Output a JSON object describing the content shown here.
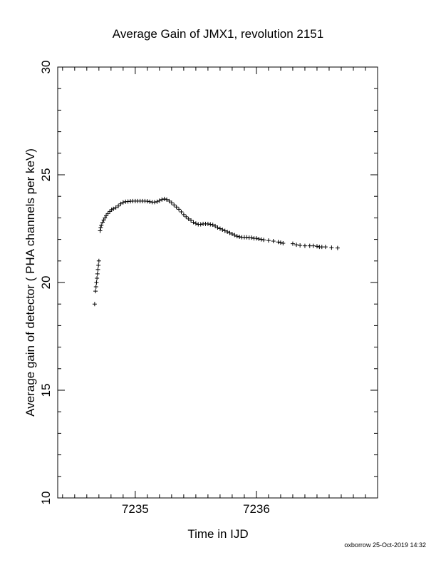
{
  "chart_data": {
    "type": "scatter",
    "title": "Average Gain of JMX1, revolution 2151",
    "xlabel": "Time in IJD",
    "ylabel": "Average gain of detector ( PHA channels per keV)",
    "xlim": [
      7234.36,
      7237.0
    ],
    "ylim": [
      10,
      30
    ],
    "x_ticks": [
      7235,
      7236
    ],
    "x_tick_labels": [
      "7235",
      "7236"
    ],
    "y_ticks": [
      10,
      15,
      20,
      25,
      30
    ],
    "y_tick_labels": [
      "10",
      "15",
      "20",
      "25",
      "30"
    ],
    "marker": "plus",
    "grid": false,
    "legend": "none",
    "series": [
      {
        "x": [
          7234.665,
          7234.672,
          7234.676,
          7234.68,
          7234.684,
          7234.688,
          7234.692,
          7234.696,
          7234.7,
          7234.71,
          7234.715,
          7234.72,
          7234.73,
          7234.74,
          7234.75,
          7234.76,
          7234.775,
          7234.79,
          7234.805,
          7234.82,
          7234.84,
          7234.86,
          7234.88,
          7234.9,
          7234.92,
          7234.94,
          7234.96,
          7234.98,
          7235.0,
          7235.02,
          7235.04,
          7235.06,
          7235.08,
          7235.1,
          7235.12,
          7235.14,
          7235.16,
          7235.18,
          7235.2,
          7235.22,
          7235.24,
          7235.26,
          7235.28,
          7235.3,
          7235.32,
          7235.34,
          7235.36,
          7235.38,
          7235.4,
          7235.42,
          7235.44,
          7235.46,
          7235.48,
          7235.5,
          7235.52,
          7235.54,
          7235.56,
          7235.58,
          7235.6,
          7235.62,
          7235.64,
          7235.66,
          7235.68,
          7235.7,
          7235.72,
          7235.74,
          7235.76,
          7235.78,
          7235.8,
          7235.82,
          7235.84,
          7235.86,
          7235.88,
          7235.9,
          7235.92,
          7235.94,
          7235.96,
          7235.98,
          7236.0,
          7236.02,
          7236.04,
          7236.06,
          7236.1,
          7236.14,
          7236.18,
          7236.2,
          7236.22,
          7236.3,
          7236.33,
          7236.36,
          7236.4,
          7236.44,
          7236.47,
          7236.5,
          7236.52,
          7236.54,
          7236.57,
          7236.62,
          7236.67
        ],
        "y": [
          19.0,
          19.6,
          19.8,
          20.0,
          20.2,
          20.4,
          20.6,
          20.8,
          21.0,
          22.4,
          22.55,
          22.65,
          22.8,
          22.9,
          23.0,
          23.1,
          23.2,
          23.3,
          23.38,
          23.42,
          23.48,
          23.55,
          23.65,
          23.72,
          23.75,
          23.76,
          23.77,
          23.78,
          23.78,
          23.78,
          23.78,
          23.78,
          23.78,
          23.77,
          23.75,
          23.73,
          23.73,
          23.75,
          23.8,
          23.85,
          23.88,
          23.85,
          23.78,
          23.7,
          23.6,
          23.5,
          23.4,
          23.28,
          23.15,
          23.05,
          22.95,
          22.88,
          22.8,
          22.74,
          22.7,
          22.7,
          22.72,
          22.72,
          22.72,
          22.7,
          22.68,
          22.62,
          22.55,
          22.5,
          22.45,
          22.4,
          22.35,
          22.3,
          22.25,
          22.2,
          22.15,
          22.12,
          22.1,
          22.1,
          22.1,
          22.08,
          22.08,
          22.05,
          22.05,
          22.02,
          22.0,
          21.98,
          21.95,
          21.92,
          21.88,
          21.85,
          21.82,
          21.8,
          21.75,
          21.72,
          21.7,
          21.7,
          21.7,
          21.68,
          21.65,
          21.65,
          21.65,
          21.62,
          21.6
        ]
      }
    ]
  },
  "footer": {
    "credit": "oxborrow 25-Oct-2019 14:32"
  }
}
